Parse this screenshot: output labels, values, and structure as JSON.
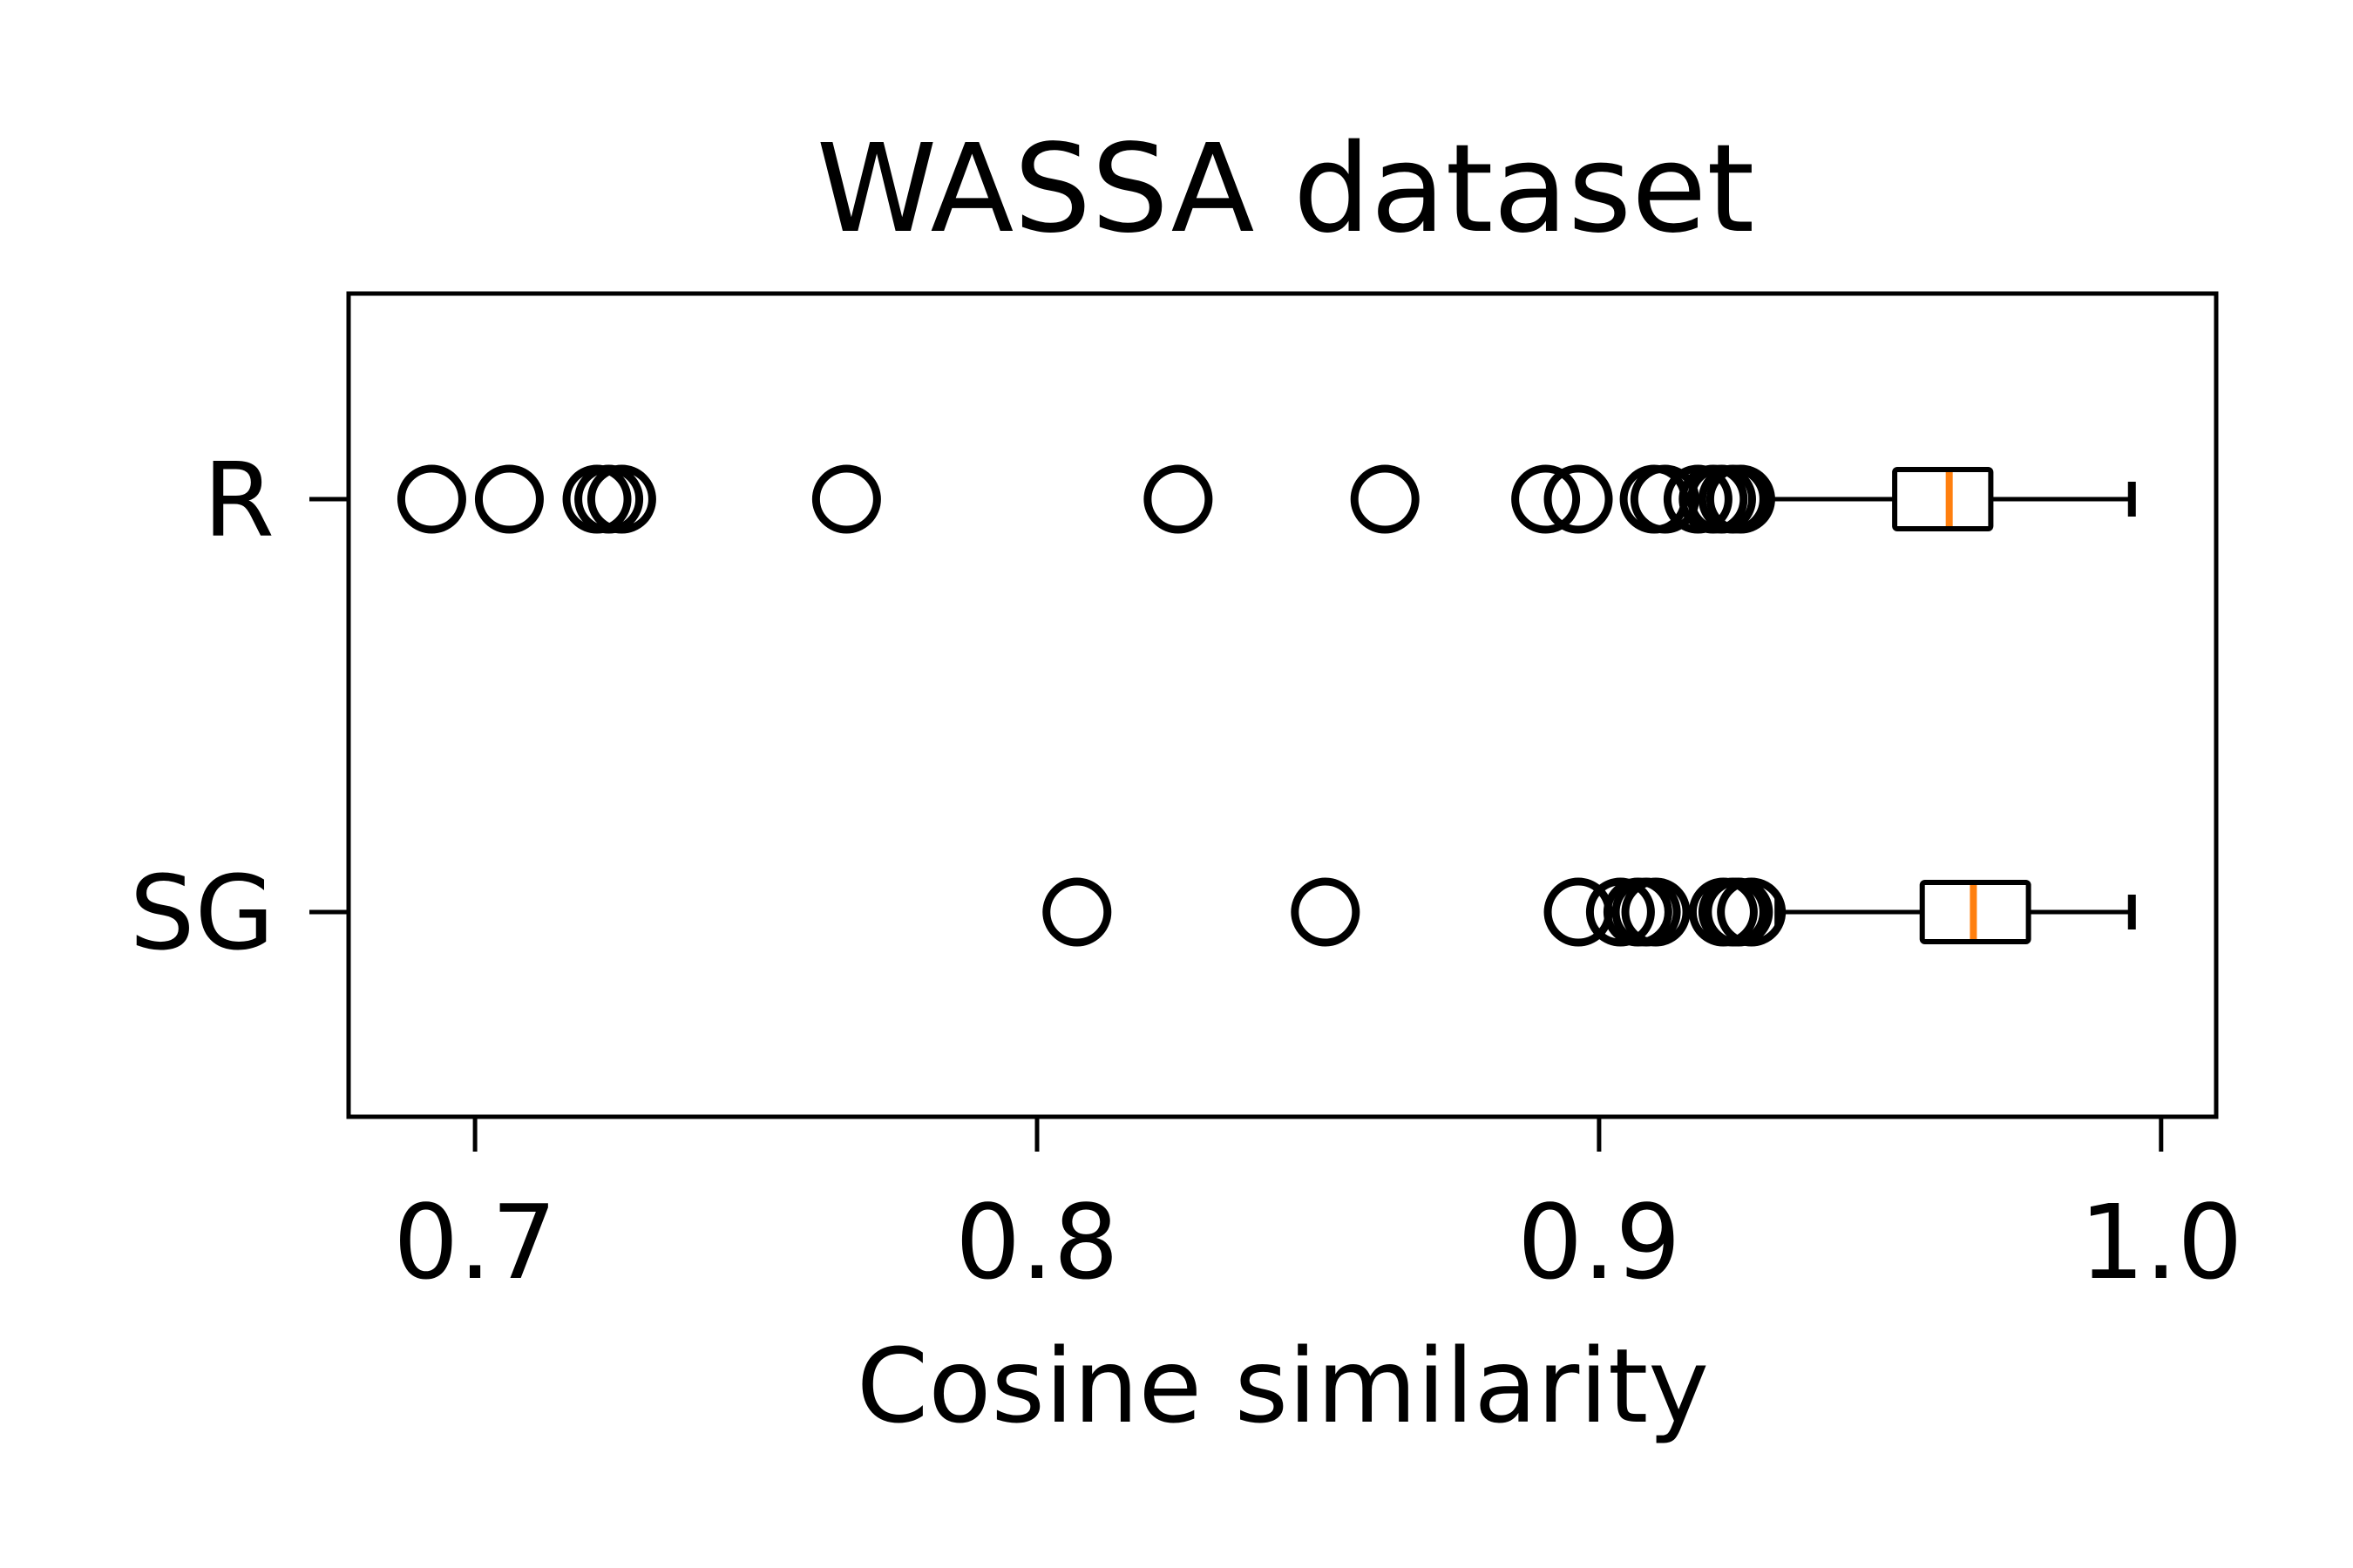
{
  "chart_data": {
    "type": "boxplot",
    "orientation": "horizontal",
    "title": "WASSA dataset",
    "xlabel": "Cosine similarity",
    "ylabel": "",
    "xlim": [
      0.6775,
      1.0098
    ],
    "xticks": [
      0.7,
      0.8,
      0.9,
      1.0
    ],
    "xtick_labels": [
      "0.7",
      "0.8",
      "0.9",
      "1.0"
    ],
    "categories": [
      "R",
      "SG"
    ],
    "grid": false,
    "series": [
      {
        "label": "R",
        "whisker_low": 0.9298,
        "q1": 0.9526,
        "median": 0.9623,
        "q3": 0.9697,
        "whisker_high": 0.9948,
        "outliers": [
          0.6923,
          0.7061,
          0.7217,
          0.7238,
          0.7261,
          0.7661,
          0.8251,
          0.8619,
          0.8905,
          0.8963,
          0.9098,
          0.9117,
          0.9176,
          0.9203,
          0.9218,
          0.9238,
          0.9252
        ]
      },
      {
        "label": "SG",
        "whisker_low": 0.9316,
        "q1": 0.9575,
        "median": 0.9666,
        "q3": 0.9764,
        "whisker_high": 0.9948,
        "outliers": [
          0.8071,
          0.8513,
          0.8963,
          0.9038,
          0.9069,
          0.9084,
          0.9101,
          0.9221,
          0.9238,
          0.9248,
          0.9271
        ]
      }
    ],
    "colors": {
      "box": "#000000",
      "median": "#ff7f0e",
      "flier": "#000000",
      "background": "#ffffff"
    }
  }
}
